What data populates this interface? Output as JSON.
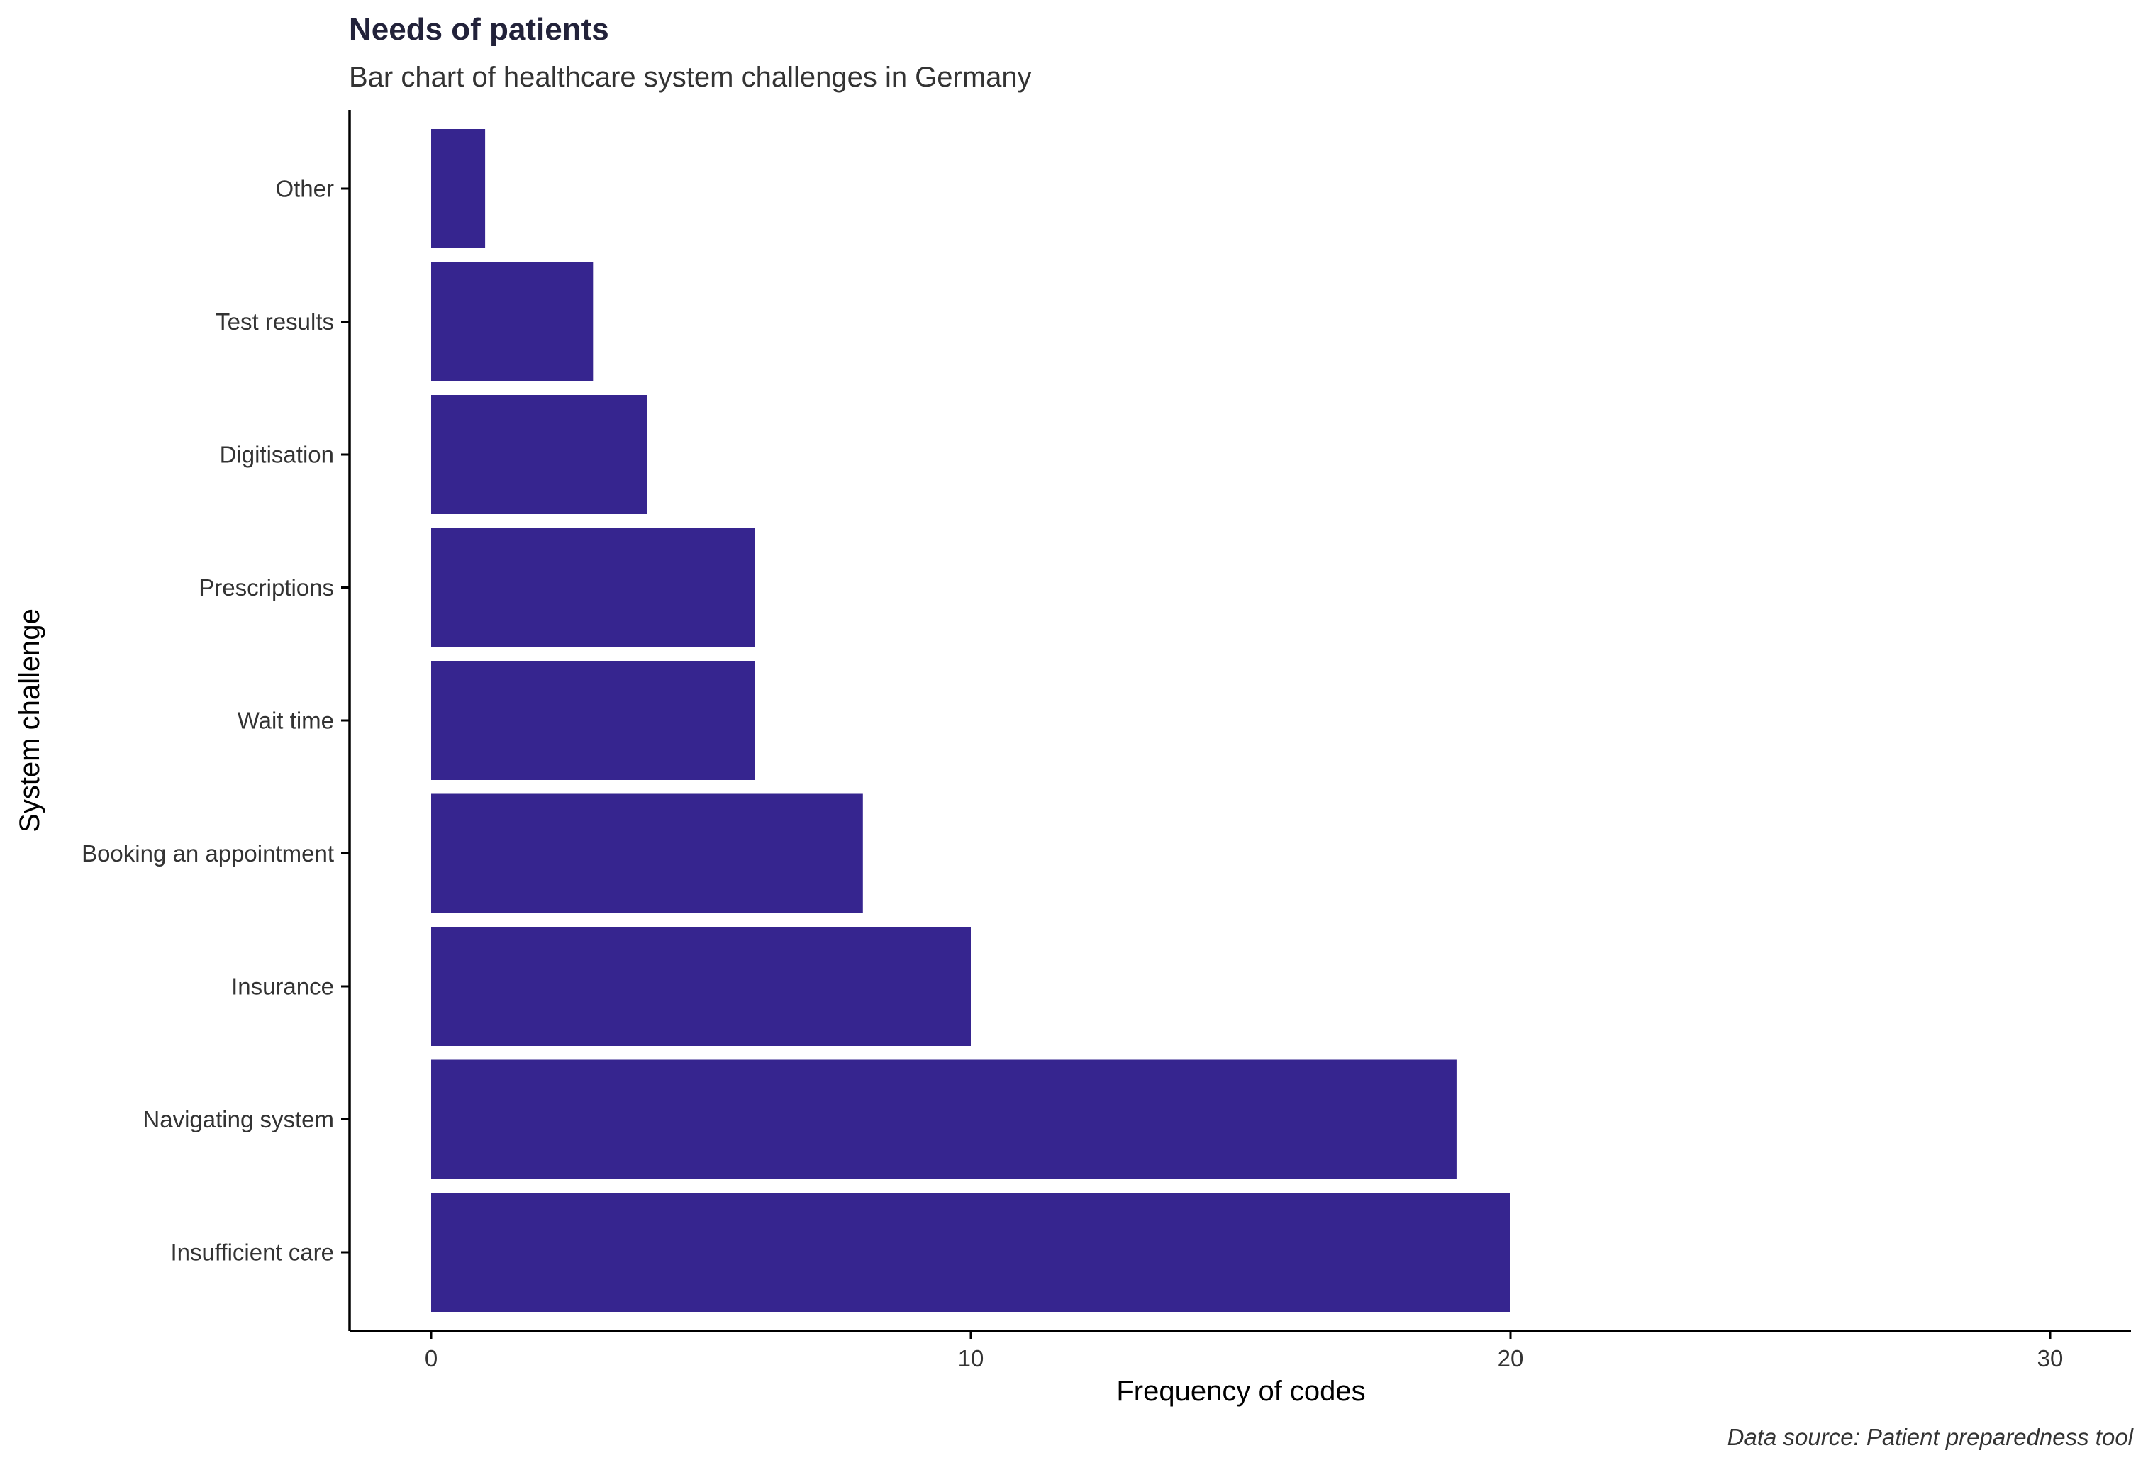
{
  "chart_data": {
    "type": "bar",
    "orientation": "horizontal",
    "title": "Needs of patients",
    "subtitle": "Bar chart of healthcare system challenges in Germany",
    "xlabel": "Frequency of codes",
    "ylabel": "System challenge",
    "caption": "Data source: Patient preparedness tool",
    "categories": [
      "Insufficient care",
      "Navigating system",
      "Insurance",
      "Booking an appointment",
      "Wait time",
      "Prescriptions",
      "Digitisation",
      "Test results",
      "Other"
    ],
    "values": [
      20,
      19,
      10,
      8,
      6,
      6,
      4,
      3,
      1
    ],
    "xlim": [
      0,
      30
    ],
    "xticks": [
      0,
      10,
      20,
      30
    ],
    "xtick_labels": [
      "0",
      "10",
      "20",
      "30"
    ],
    "bar_color": "#36258f",
    "grid": false,
    "legend": "none"
  }
}
